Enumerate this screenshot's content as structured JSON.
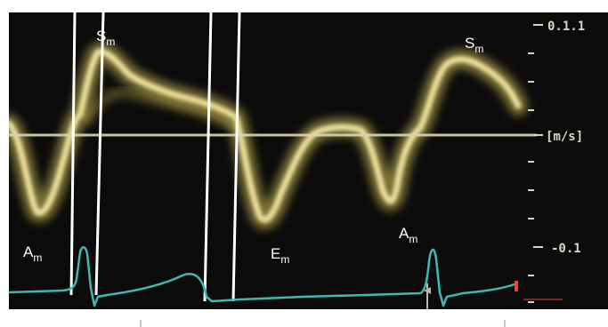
{
  "image": {
    "description_of_visible_text_only": true
  },
  "scale": {
    "top_label": "0.1.1",
    "unit_label": "[m/s]",
    "bottom_label": "-0.1"
  },
  "wave_labels": {
    "sm_left": "S",
    "sm_left_sub": "m",
    "am_left": "A",
    "am_left_sub": "m",
    "em": "E",
    "em_sub": "m",
    "am_right": "A",
    "am_right_sub": "m",
    "sm_right": "S",
    "sm_right_sub": "m"
  },
  "colors": {
    "background": "#0b0b0b",
    "doppler_signal": "#e8d870",
    "doppler_core": "#fff6c2",
    "baseline": "#d8d6b8",
    "ecg_trace": "#3fb7b3",
    "scale_text": "#d9d6c6",
    "marker_lines": "#ffffff",
    "red_marker": "#e04b3b"
  }
}
